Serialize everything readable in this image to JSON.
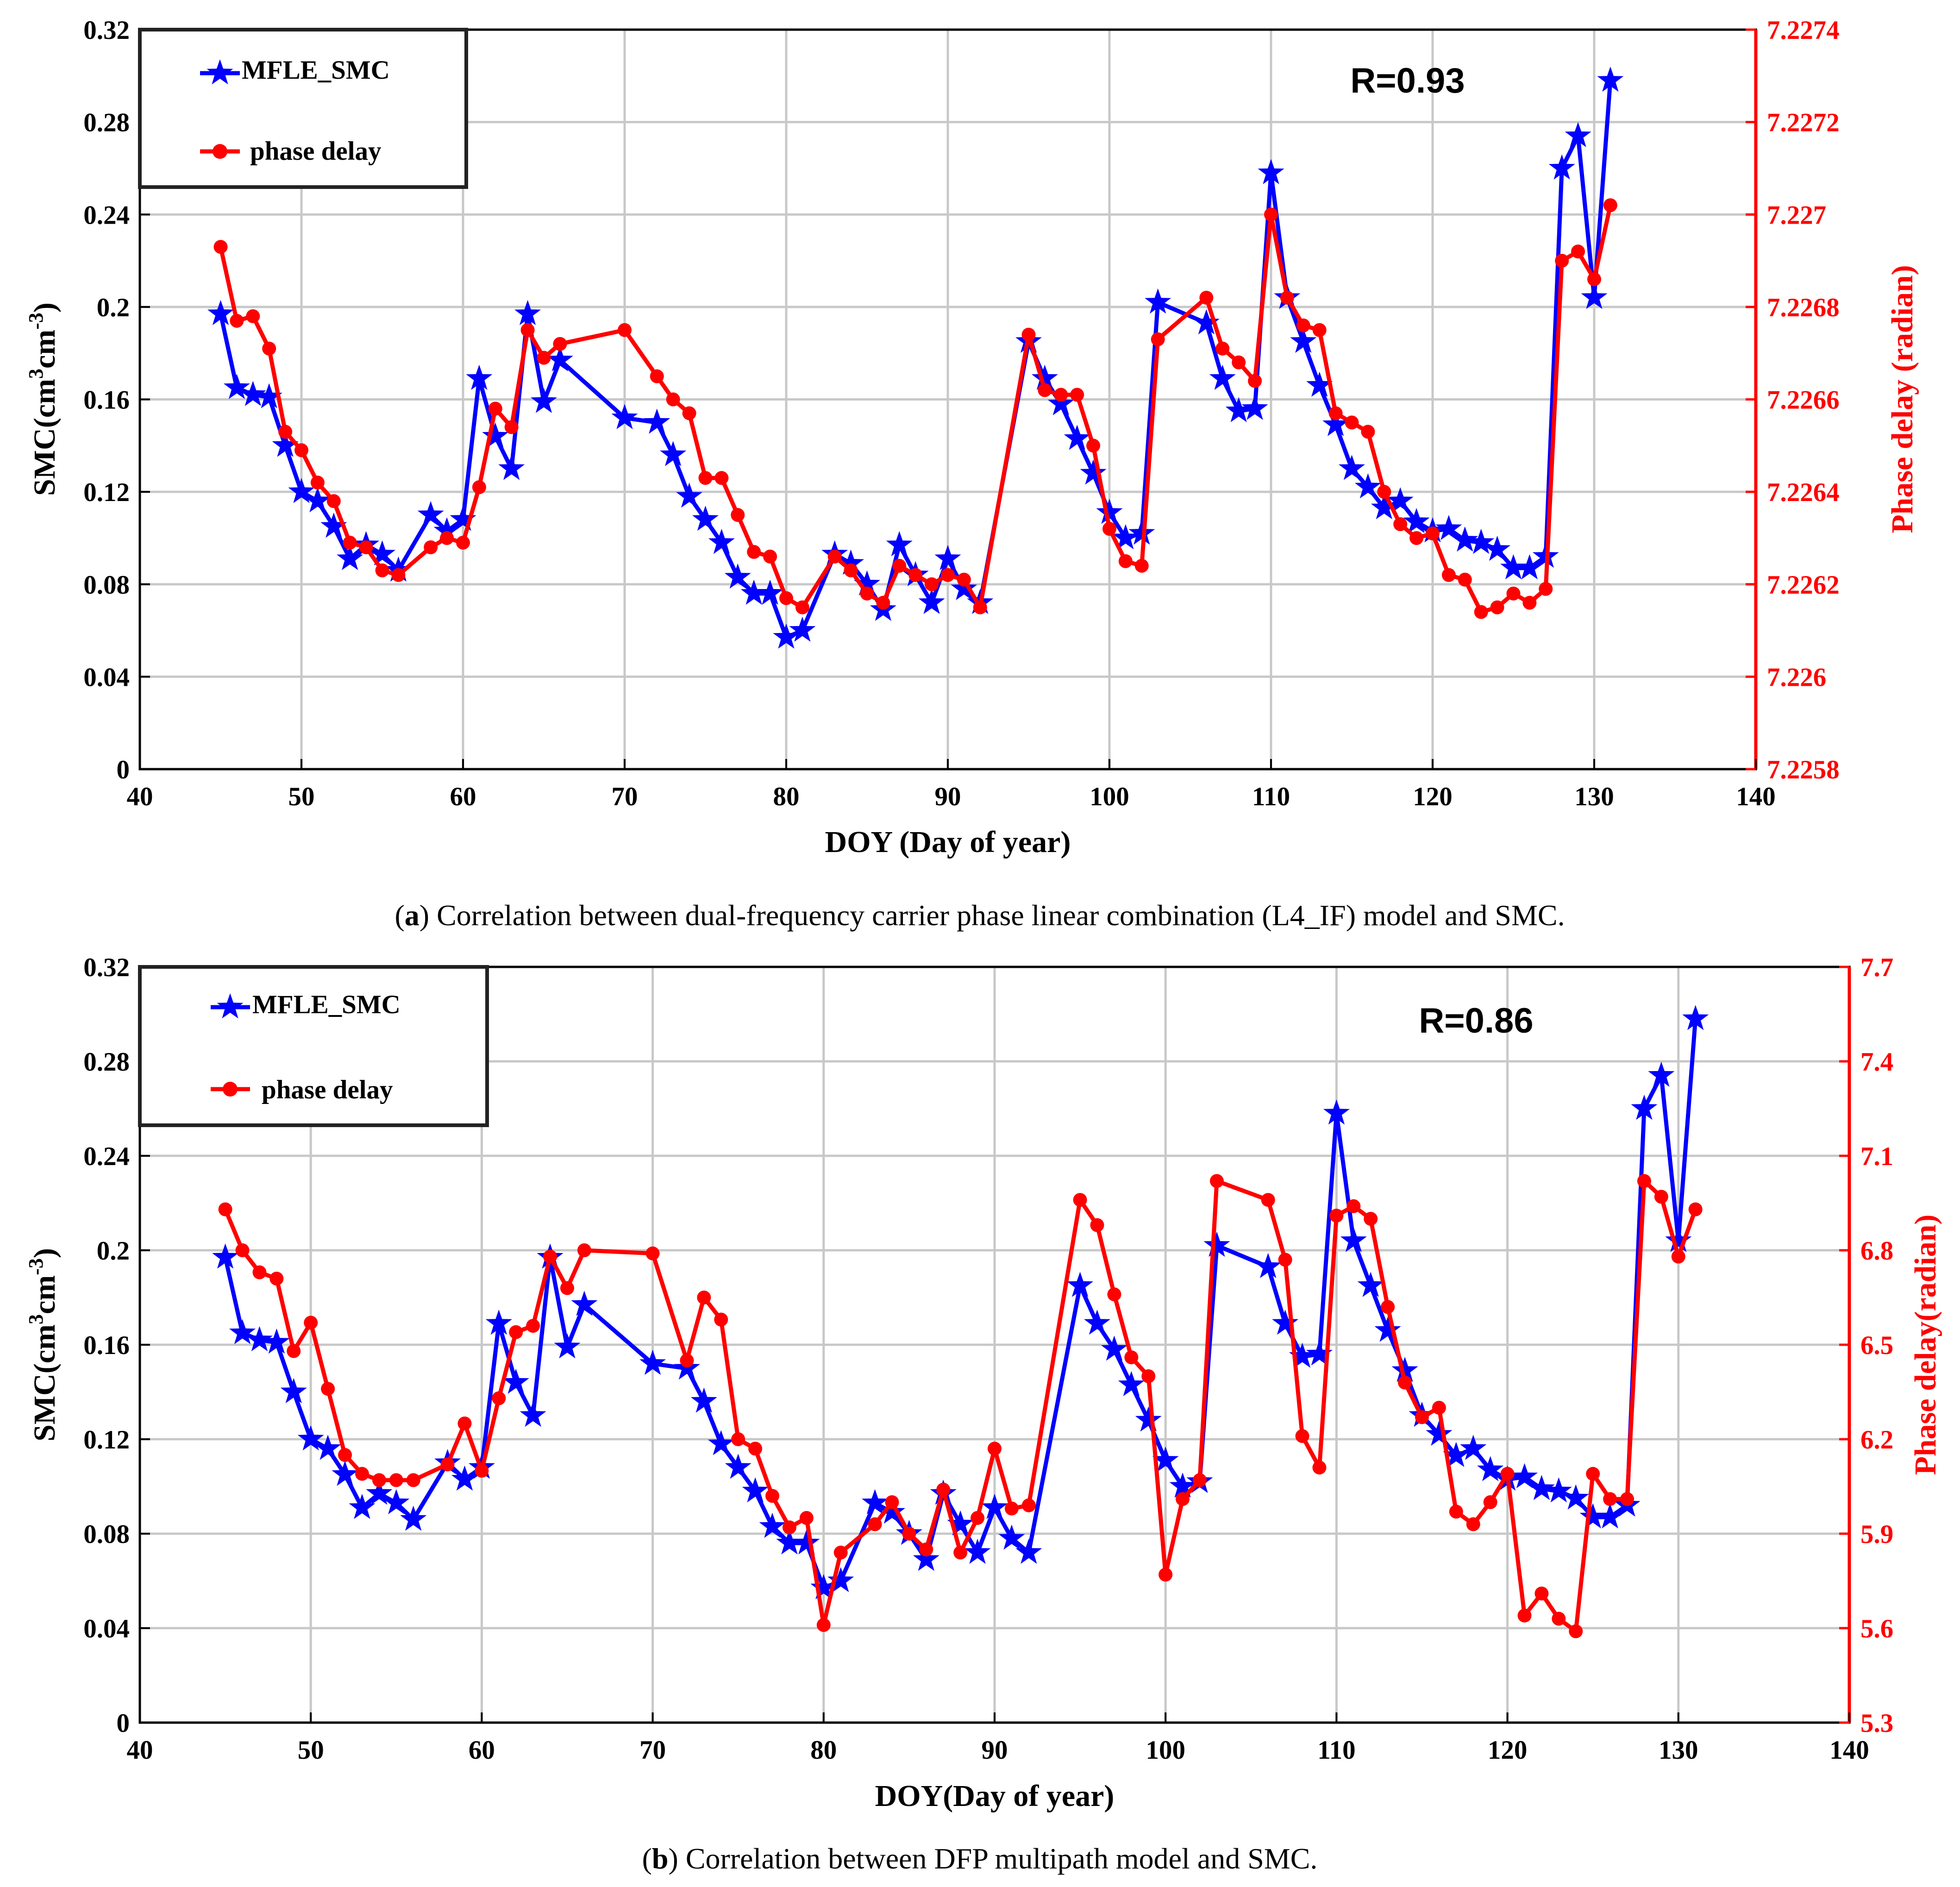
{
  "colors": {
    "smc": "#0000ff",
    "phase": "#ff0000",
    "grid": "#c8c8c8",
    "axis": "#000000"
  },
  "chart_data": [
    {
      "id": "a",
      "type": "line",
      "caption_label": "a",
      "caption_text": "Correlation between dual-frequency carrier phase linear combination (L4_IF) model and SMC.",
      "xlabel": "DOY (Day of year)",
      "ylabel": "SMC(cm³cm⁻³)",
      "ylabel_right": "Phase delay (radian)",
      "xlim": [
        40,
        140
      ],
      "ylim": [
        0,
        0.32
      ],
      "ylim_right": [
        7.2258,
        7.2274
      ],
      "xticks": [
        "40",
        "50",
        "60",
        "70",
        "80",
        "90",
        "100",
        "110",
        "120",
        "130",
        "140"
      ],
      "yticks": [
        "0",
        "0.04",
        "0.08",
        "0.12",
        "0.16",
        "0.2",
        "0.24",
        "0.28",
        "0.32"
      ],
      "yticks_right": [
        "7.2258",
        "7.226",
        "7.2262",
        "7.2264",
        "7.2266",
        "7.2268",
        "7.227",
        "7.2272",
        "7.2274"
      ],
      "annotation": "R=0.93",
      "legend": [
        "MFLE_SMC",
        "phase delay"
      ],
      "series": [
        {
          "name": "MFLE_SMC",
          "axis": "left",
          "marker": "star",
          "x": [
            45,
            46,
            47,
            48,
            49,
            50,
            51,
            52,
            53,
            54,
            55,
            56,
            58,
            59,
            60,
            61,
            62,
            63,
            64,
            65,
            66,
            70,
            72,
            73,
            74,
            75,
            76,
            77,
            78,
            79,
            80,
            81,
            83,
            84,
            85,
            86,
            87,
            88,
            89,
            90,
            91,
            92,
            95,
            96,
            97,
            98,
            99,
            100,
            101,
            102,
            103,
            106,
            107,
            108,
            109,
            110,
            111,
            112,
            113,
            114,
            115,
            116,
            117,
            118,
            119,
            120,
            121,
            122,
            123,
            124,
            125,
            126,
            127,
            128,
            129,
            130,
            131
          ],
          "y": [
            0.197,
            0.165,
            0.162,
            0.161,
            0.14,
            0.12,
            0.116,
            0.105,
            0.091,
            0.097,
            0.093,
            0.086,
            0.11,
            0.103,
            0.108,
            0.169,
            0.144,
            0.13,
            0.197,
            0.159,
            0.177,
            0.152,
            0.15,
            0.136,
            0.118,
            0.108,
            0.098,
            0.083,
            0.076,
            0.076,
            0.057,
            0.06,
            0.093,
            0.089,
            0.08,
            0.069,
            0.097,
            0.084,
            0.072,
            0.091,
            0.078,
            0.072,
            0.185,
            0.169,
            0.158,
            0.143,
            0.128,
            0.111,
            0.1,
            0.102,
            0.202,
            0.193,
            0.169,
            0.155,
            0.156,
            0.258,
            0.204,
            0.185,
            0.166,
            0.149,
            0.13,
            0.122,
            0.113,
            0.116,
            0.107,
            0.103,
            0.104,
            0.099,
            0.098,
            0.095,
            0.087,
            0.087,
            0.092,
            0.26,
            0.274,
            0.204,
            0.298
          ]
        },
        {
          "name": "phase delay",
          "axis": "right",
          "marker": "circle",
          "x": [
            45,
            46,
            47,
            48,
            49,
            50,
            51,
            52,
            53,
            54,
            55,
            56,
            58,
            59,
            60,
            61,
            62,
            63,
            64,
            65,
            66,
            70,
            72,
            73,
            74,
            75,
            76,
            77,
            78,
            79,
            80,
            81,
            83,
            84,
            85,
            86,
            87,
            88,
            89,
            90,
            91,
            92,
            95,
            96,
            97,
            98,
            99,
            100,
            101,
            102,
            103,
            106,
            107,
            108,
            109,
            110,
            111,
            112,
            113,
            114,
            115,
            116,
            117,
            118,
            119,
            120,
            121,
            122,
            123,
            124,
            125,
            126,
            127,
            128,
            129,
            130,
            131
          ],
          "y": [
            7.22693,
            7.22677,
            7.22678,
            7.22671,
            7.22653,
            7.22649,
            7.22642,
            7.22638,
            7.22629,
            7.22628,
            7.22623,
            7.22622,
            7.22628,
            7.2263,
            7.22629,
            7.22641,
            7.22658,
            7.22654,
            7.22675,
            7.22669,
            7.22672,
            7.22675,
            7.22665,
            7.2266,
            7.22657,
            7.22643,
            7.22643,
            7.22635,
            7.22627,
            7.22626,
            7.22617,
            7.22615,
            7.22626,
            7.22623,
            7.22618,
            7.22616,
            7.22624,
            7.22622,
            7.2262,
            7.22622,
            7.22621,
            7.22615,
            7.22674,
            7.22662,
            7.22661,
            7.22661,
            7.2265,
            7.22632,
            7.22625,
            7.22624,
            7.22673,
            7.22682,
            7.22671,
            7.22668,
            7.22664,
            7.227,
            7.22682,
            7.22676,
            7.22675,
            7.22657,
            7.22655,
            7.22653,
            7.2264,
            7.22633,
            7.2263,
            7.22631,
            7.22622,
            7.22621,
            7.22614,
            7.22615,
            7.22618,
            7.22616,
            7.22619,
            7.2269,
            7.22692,
            7.22686,
            7.22702
          ]
        }
      ]
    },
    {
      "id": "b",
      "type": "line",
      "caption_label": "b",
      "caption_text": "Correlation between DFP multipath model and SMC.",
      "xlabel": "DOY(Day of year)",
      "ylabel": "SMC(cm³cm⁻³)",
      "ylabel_right": "Phase delay(radian)",
      "xlim": [
        40,
        140
      ],
      "ylim": [
        0,
        0.32
      ],
      "ylim_right": [
        5.3,
        7.7
      ],
      "xticks": [
        "40",
        "50",
        "60",
        "70",
        "80",
        "90",
        "100",
        "110",
        "120",
        "130",
        "140"
      ],
      "yticks": [
        "0",
        "0.04",
        "0.08",
        "0.12",
        "0.16",
        "0.2",
        "0.24",
        "0.28",
        "0.32"
      ],
      "yticks_right": [
        "5.3",
        "5.6",
        "5.9",
        "6.2",
        "6.5",
        "6.8",
        "7.1",
        "7.4",
        "7.7"
      ],
      "annotation": "R=0.86",
      "legend": [
        "MFLE_SMC",
        "phase delay"
      ],
      "series": [
        {
          "name": "MFLE_SMC",
          "axis": "left",
          "marker": "star",
          "x": [
            45,
            46,
            47,
            48,
            49,
            50,
            51,
            52,
            53,
            54,
            55,
            56,
            58,
            59,
            60,
            61,
            62,
            63,
            64,
            65,
            66,
            70,
            72,
            73,
            74,
            75,
            76,
            77,
            78,
            79,
            80,
            81,
            83,
            84,
            85,
            86,
            87,
            88,
            89,
            90,
            91,
            92,
            95,
            96,
            97,
            98,
            99,
            100,
            101,
            102,
            103,
            106,
            107,
            108,
            109,
            110,
            111,
            112,
            113,
            114,
            115,
            116,
            117,
            118,
            119,
            120,
            121,
            122,
            123,
            124,
            125,
            126,
            127,
            128,
            129,
            130,
            131
          ],
          "y": [
            0.197,
            0.165,
            0.162,
            0.161,
            0.14,
            0.12,
            0.116,
            0.105,
            0.091,
            0.097,
            0.093,
            0.086,
            0.11,
            0.103,
            0.108,
            0.169,
            0.144,
            0.13,
            0.197,
            0.159,
            0.177,
            0.152,
            0.15,
            0.136,
            0.118,
            0.108,
            0.098,
            0.083,
            0.076,
            0.076,
            0.057,
            0.06,
            0.093,
            0.089,
            0.08,
            0.069,
            0.097,
            0.084,
            0.072,
            0.091,
            0.078,
            0.072,
            0.185,
            0.169,
            0.158,
            0.143,
            0.128,
            0.111,
            0.1,
            0.102,
            0.202,
            0.193,
            0.169,
            0.155,
            0.156,
            0.258,
            0.204,
            0.185,
            0.166,
            0.149,
            0.13,
            0.122,
            0.113,
            0.116,
            0.107,
            0.103,
            0.104,
            0.099,
            0.098,
            0.095,
            0.087,
            0.087,
            0.092,
            0.26,
            0.274,
            0.204,
            0.298
          ]
        },
        {
          "name": "phase delay",
          "axis": "right",
          "marker": "circle",
          "x": [
            45,
            46,
            47,
            48,
            49,
            50,
            51,
            52,
            53,
            54,
            55,
            56,
            58,
            59,
            60,
            61,
            62,
            63,
            64,
            65,
            66,
            70,
            72,
            73,
            74,
            75,
            76,
            77,
            78,
            79,
            80,
            81,
            83,
            84,
            85,
            86,
            87,
            88,
            89,
            90,
            91,
            92,
            95,
            96,
            97,
            98,
            99,
            100,
            101,
            102,
            103,
            106,
            107,
            108,
            109,
            110,
            111,
            112,
            113,
            114,
            115,
            116,
            117,
            118,
            119,
            120,
            121,
            122,
            123,
            124,
            125,
            126,
            127,
            128,
            129,
            130,
            131
          ],
          "y": [
            6.93,
            6.8,
            6.73,
            6.71,
            6.48,
            6.57,
            6.36,
            6.15,
            6.09,
            6.07,
            6.07,
            6.07,
            6.12,
            6.25,
            6.1,
            6.33,
            6.54,
            6.56,
            6.78,
            6.68,
            6.8,
            6.79,
            6.45,
            6.65,
            6.58,
            6.2,
            6.17,
            6.02,
            5.92,
            5.95,
            5.61,
            5.84,
            5.93,
            6.0,
            5.9,
            5.85,
            6.04,
            5.84,
            5.95,
            6.17,
            5.98,
            5.99,
            6.96,
            6.88,
            6.66,
            6.46,
            6.4,
            5.77,
            6.01,
            6.07,
            7.02,
            6.96,
            6.77,
            6.21,
            6.11,
            6.91,
            6.94,
            6.9,
            6.62,
            6.38,
            6.27,
            6.3,
            5.97,
            5.93,
            6.0,
            6.09,
            5.64,
            5.71,
            5.63,
            5.59,
            6.09,
            6.01,
            6.01,
            7.02,
            6.97,
            6.78,
            6.93
          ]
        }
      ]
    }
  ]
}
